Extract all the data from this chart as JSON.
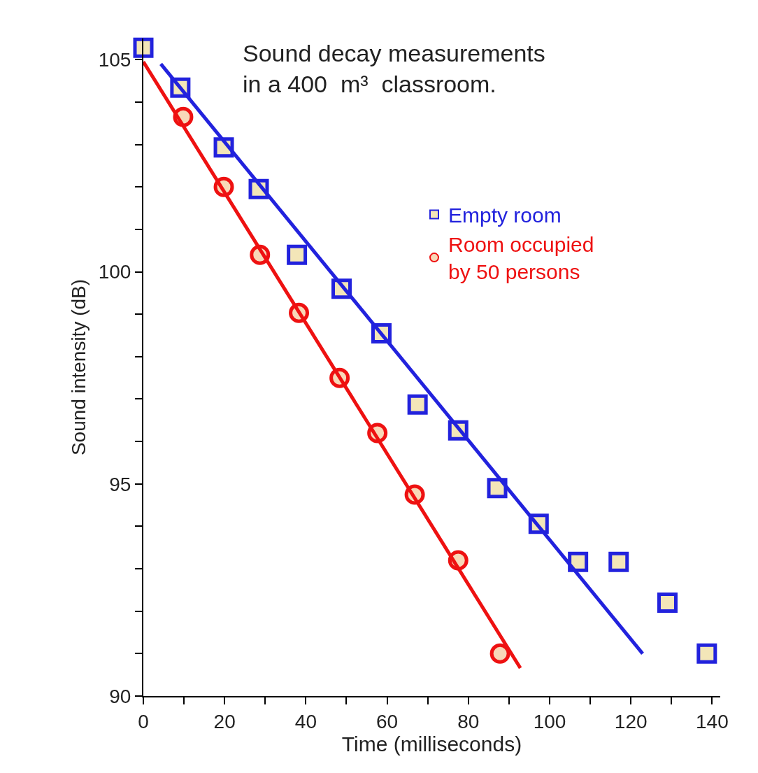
{
  "chart_data": {
    "type": "scatter",
    "title": "Sound decay measurements\nin a 400  m³  classroom.",
    "xlabel": "Time (milliseconds)",
    "ylabel": "Sound intensity (dB)",
    "xlim": [
      0,
      142
    ],
    "ylim": [
      90,
      105.5
    ],
    "xticks": [
      0,
      {
        "value": 10,
        "label": null
      },
      20,
      {
        "value": 30,
        "label": null
      },
      40,
      {
        "value": 50,
        "label": null
      },
      60,
      {
        "value": 70,
        "label": null
      },
      80,
      {
        "value": 90,
        "label": null
      },
      100,
      {
        "value": 110,
        "label": null
      },
      120,
      {
        "value": 130,
        "label": null
      },
      140
    ],
    "yticks": [
      90,
      {
        "value": 91,
        "label": null
      },
      {
        "value": 92,
        "label": null
      },
      {
        "value": 93,
        "label": null
      },
      {
        "value": 94,
        "label": null
      },
      95,
      {
        "value": 96,
        "label": null
      },
      {
        "value": 97,
        "label": null
      },
      {
        "value": 98,
        "label": null
      },
      {
        "value": 99,
        "label": null
      },
      100,
      {
        "value": 101,
        "label": null
      },
      {
        "value": 102,
        "label": null
      },
      {
        "value": 103,
        "label": null
      },
      {
        "value": 104,
        "label": null
      },
      105
    ],
    "legend": "top right",
    "series": [
      {
        "name": "Empty room",
        "color": "#2222dd",
        "marker": "square",
        "x": [
          0,
          9.1,
          19.8,
          28.4,
          37.8,
          48.8,
          58.6,
          67.5,
          77.5,
          87.1,
          97.3,
          107,
          117,
          129,
          138.7
        ],
        "values": [
          105.28,
          104.34,
          102.93,
          101.95,
          100.4,
          99.6,
          98.55,
          96.87,
          96.26,
          94.9,
          94.06,
          93.16,
          93.16,
          92.2,
          91.0
        ]
      },
      {
        "name": "Room occupied\nby 50 persons",
        "color": "#ee1111",
        "marker": "circle",
        "x": [
          9.8,
          19.8,
          28.7,
          38.3,
          48.3,
          57.6,
          66.8,
          77.5,
          87.8
        ],
        "values": [
          103.65,
          102.0,
          100.4,
          99.03,
          97.5,
          96.2,
          94.75,
          93.2,
          91.0
        ]
      },
      {
        "type": "line",
        "color": "#2222dd",
        "marker": "none",
        "line_style": "solid",
        "x": [
          4.3,
          122.9
        ],
        "values": [
          104.9,
          91.0
        ]
      },
      {
        "type": "line",
        "color": "#ee1111",
        "marker": "none",
        "line_style": "solid",
        "x": [
          0,
          92.8
        ],
        "values": [
          104.95,
          90.66
        ]
      }
    ]
  }
}
